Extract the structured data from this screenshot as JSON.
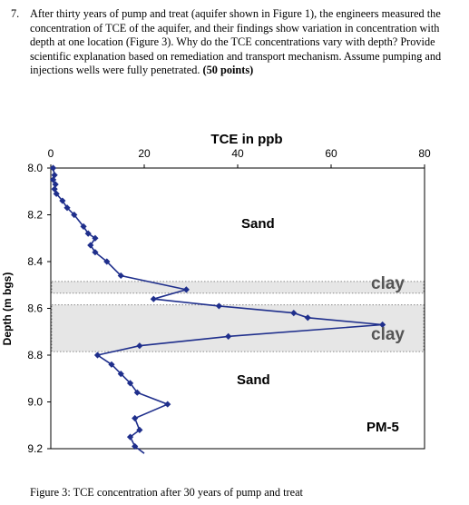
{
  "question": {
    "number": "7.",
    "text": "After thirty years of pump and treat (aquifer shown in Figure 1), the engineers measured the concentration of TCE of the aquifer, and their findings show variation in concentration with depth at one location (Figure 3). Why do the TCE concentrations vary with depth? Provide scientific explanation based on remediation and transport mechanism. Assume pumping and injections wells were fully penetrated.",
    "points": "(50 points)"
  },
  "caption": "Figure 3: TCE concentration after 30 years of pump and treat",
  "chart_data": {
    "type": "line",
    "title": "TCE in ppb",
    "xlabel": "TCE in ppb",
    "ylabel": "Depth (m bgs)",
    "x_axis_position": "top",
    "y_axis_inverted": true,
    "xlim": [
      0,
      80
    ],
    "ylim": [
      8.0,
      9.2
    ],
    "x_ticks": [
      "0",
      "20",
      "40",
      "60",
      "80"
    ],
    "y_ticks": [
      "8.0",
      "8.2",
      "8.4",
      "8.6",
      "8.8",
      "9.0",
      "9.2"
    ],
    "grid": false,
    "marker": "diamond",
    "colors": {
      "series": "#1f2f8c",
      "clay_band": "#e6e6e6"
    },
    "series": [
      {
        "depth": [
          8.0,
          8.03,
          8.05,
          8.07,
          8.09,
          8.11,
          8.14,
          8.17,
          8.2,
          8.25,
          8.28,
          8.3,
          8.33,
          8.36,
          8.4,
          8.46,
          8.52,
          8.56,
          8.59,
          8.62,
          8.64,
          8.67,
          8.72,
          8.76,
          8.8,
          8.84,
          8.88,
          8.92,
          8.96,
          9.01,
          9.07,
          9.12,
          9.15,
          9.19,
          9.22
        ],
        "tce": [
          0.5,
          0.8,
          0.5,
          1.0,
          0.8,
          1.2,
          2.5,
          3.5,
          5.0,
          7.0,
          8.0,
          9.5,
          8.5,
          9.5,
          12,
          15,
          29,
          22,
          36,
          52,
          55,
          71,
          38,
          19,
          10,
          13,
          15,
          17,
          18.5,
          25,
          18,
          19,
          17,
          18,
          20
        ]
      }
    ],
    "annotations": {
      "sand_upper": "Sand",
      "clay_upper": "clay",
      "clay_lower": "clay",
      "sand_lower": "Sand",
      "well": "PM-5"
    }
  }
}
